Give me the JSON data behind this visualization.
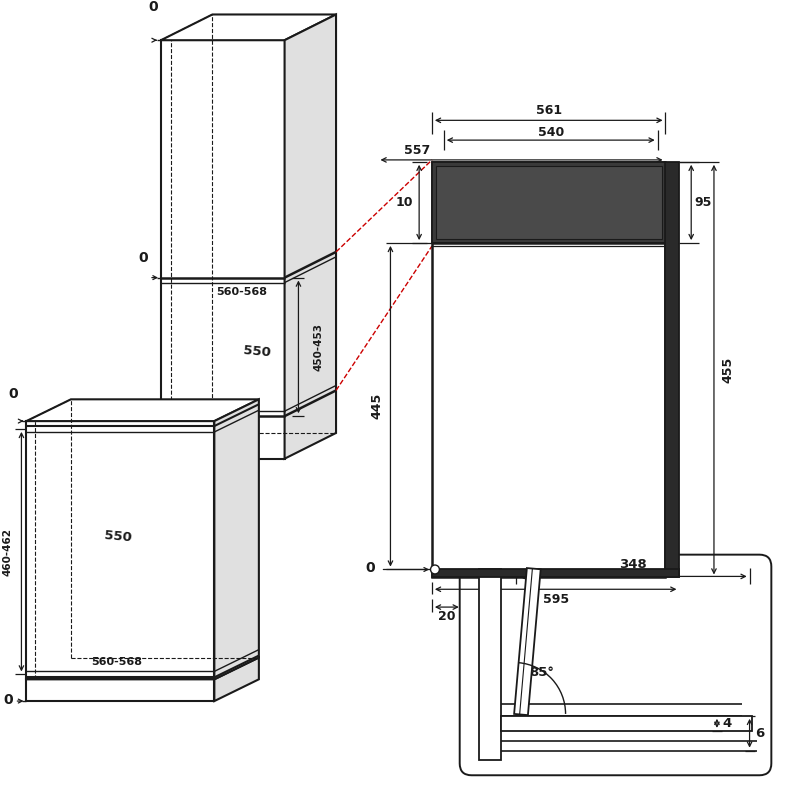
{
  "bg_color": "#ffffff",
  "lc": "#1a1a1a",
  "gray_light": "#d0d0d0",
  "gray_mid": "#b8b8b8",
  "gray_dark": "#a0a0a0",
  "red": "#cc0000",
  "dims": {
    "561": "561",
    "540": "540",
    "557": "557",
    "10": "10",
    "95": "95",
    "455": "455",
    "445": "445",
    "595": "595",
    "20": "20",
    "450_453": "450-453",
    "460_462": "460-462",
    "560_568": "560-568",
    "550": "550",
    "348": "348",
    "85": "85°",
    "4": "4",
    "6": "6",
    "0": "0"
  }
}
